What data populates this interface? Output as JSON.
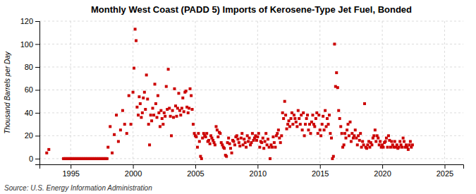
{
  "chart_data": {
    "type": "scatter",
    "title": "Monthly West Coast (PADD 5) Imports of Kerosene-Type Jet Fuel, Bonded",
    "y_label": "Thousand Barrels per Day",
    "annotation": "Source: U.S. Energy Information Administration",
    "color": "#cc0000",
    "marker": "square",
    "grid": true,
    "xlim": [
      1992.5,
      2026.5
    ],
    "xticks": [
      1995,
      2000,
      2005,
      2010,
      2015,
      2020,
      2025
    ],
    "ylim": [
      -5,
      120
    ],
    "yticks": [
      0,
      20,
      40,
      60,
      80,
      100,
      120
    ],
    "x": [
      1993.08,
      1993.25,
      1994.42,
      1994.5,
      1994.58,
      1994.67,
      1994.75,
      1994.83,
      1994.92,
      1995.0,
      1995.08,
      1995.17,
      1995.25,
      1995.33,
      1995.42,
      1995.5,
      1995.58,
      1995.67,
      1995.75,
      1995.83,
      1995.92,
      1996.0,
      1996.08,
      1996.17,
      1996.25,
      1996.33,
      1996.42,
      1996.5,
      1996.58,
      1996.67,
      1996.75,
      1996.83,
      1996.92,
      1997.0,
      1997.08,
      1997.17,
      1997.25,
      1997.33,
      1997.42,
      1997.5,
      1997.58,
      1997.67,
      1997.75,
      1997.83,
      1997.92,
      1998.0,
      1998.17,
      1998.33,
      1998.5,
      1998.67,
      1998.83,
      1999.0,
      1999.17,
      1999.33,
      1999.5,
      1999.67,
      1999.83,
      2000.0,
      2000.08,
      2000.17,
      2000.25,
      2000.33,
      2000.42,
      2000.5,
      2000.58,
      2000.67,
      2000.75,
      2000.83,
      2000.92,
      2001.0,
      2001.08,
      2001.17,
      2001.25,
      2001.33,
      2001.42,
      2001.5,
      2001.58,
      2001.67,
      2001.75,
      2001.83,
      2001.92,
      2002.0,
      2002.08,
      2002.17,
      2002.25,
      2002.33,
      2002.42,
      2002.5,
      2002.58,
      2002.67,
      2002.75,
      2002.83,
      2002.92,
      2003.0,
      2003.08,
      2003.17,
      2003.25,
      2003.33,
      2003.42,
      2003.5,
      2003.58,
      2003.67,
      2003.75,
      2003.83,
      2003.92,
      2004.0,
      2004.08,
      2004.17,
      2004.25,
      2004.33,
      2004.42,
      2004.5,
      2004.58,
      2004.67,
      2004.75,
      2004.83,
      2004.92,
      2005.0,
      2005.08,
      2005.17,
      2005.25,
      2005.33,
      2005.42,
      2005.5,
      2005.58,
      2005.67,
      2005.75,
      2005.83,
      2005.92,
      2006.0,
      2006.08,
      2006.17,
      2006.25,
      2006.33,
      2006.42,
      2006.5,
      2006.58,
      2006.67,
      2006.75,
      2006.83,
      2006.92,
      2007.0,
      2007.08,
      2007.17,
      2007.25,
      2007.33,
      2007.42,
      2007.5,
      2007.58,
      2007.67,
      2007.75,
      2007.83,
      2007.92,
      2008.0,
      2008.08,
      2008.17,
      2008.25,
      2008.33,
      2008.42,
      2008.5,
      2008.58,
      2008.67,
      2008.75,
      2008.83,
      2008.92,
      2009.0,
      2009.08,
      2009.17,
      2009.25,
      2009.33,
      2009.42,
      2009.5,
      2009.58,
      2009.67,
      2009.75,
      2009.83,
      2009.92,
      2010.0,
      2010.08,
      2010.17,
      2010.25,
      2010.33,
      2010.42,
      2010.5,
      2010.58,
      2010.67,
      2010.75,
      2010.83,
      2010.92,
      2011.0,
      2011.08,
      2011.17,
      2011.25,
      2011.33,
      2011.42,
      2011.5,
      2011.58,
      2011.67,
      2011.75,
      2011.83,
      2011.92,
      2012.0,
      2012.08,
      2012.17,
      2012.25,
      2012.33,
      2012.42,
      2012.5,
      2012.58,
      2012.67,
      2012.75,
      2012.83,
      2012.92,
      2013.0,
      2013.08,
      2013.17,
      2013.25,
      2013.33,
      2013.42,
      2013.5,
      2013.58,
      2013.67,
      2013.75,
      2013.83,
      2013.92,
      2014.0,
      2014.08,
      2014.17,
      2014.25,
      2014.33,
      2014.42,
      2014.5,
      2014.58,
      2014.67,
      2014.75,
      2014.83,
      2014.92,
      2015.0,
      2015.08,
      2015.17,
      2015.25,
      2015.33,
      2015.42,
      2015.5,
      2015.58,
      2015.67,
      2015.75,
      2015.83,
      2015.92,
      2016.0,
      2016.08,
      2016.17,
      2016.25,
      2016.33,
      2016.42,
      2016.5,
      2016.58,
      2016.67,
      2016.75,
      2016.83,
      2016.92,
      2017.0,
      2017.08,
      2017.17,
      2017.25,
      2017.33,
      2017.42,
      2017.5,
      2017.58,
      2017.67,
      2017.75,
      2017.83,
      2017.92,
      2018.0,
      2018.08,
      2018.17,
      2018.25,
      2018.33,
      2018.42,
      2018.5,
      2018.58,
      2018.67,
      2018.75,
      2018.83,
      2018.92,
      2019.0,
      2019.08,
      2019.17,
      2019.25,
      2019.33,
      2019.42,
      2019.5,
      2019.58,
      2019.67,
      2019.75,
      2019.83,
      2019.92,
      2020.0,
      2020.08,
      2020.17,
      2020.25,
      2020.33,
      2020.42,
      2020.5,
      2020.58,
      2020.67,
      2020.75,
      2020.83,
      2020.92,
      2021.0,
      2021.08,
      2021.17,
      2021.25,
      2021.33,
      2021.42,
      2021.5,
      2021.58,
      2021.67,
      2021.75,
      2021.83,
      2021.92,
      2022.0,
      2022.08,
      2022.17,
      2022.25,
      2022.33,
      2022.42
    ],
    "values": [
      5,
      8,
      0,
      0,
      0,
      0,
      0,
      0,
      0,
      0,
      0,
      0,
      0,
      0,
      0,
      0,
      0,
      0,
      0,
      0,
      0,
      0,
      0,
      0,
      0,
      0,
      0,
      0,
      0,
      0,
      0,
      0,
      0,
      0,
      0,
      0,
      0,
      0,
      0,
      0,
      0,
      0,
      0,
      0,
      0,
      10,
      28,
      5,
      21,
      38,
      15,
      25,
      42,
      30,
      22,
      55,
      30,
      58,
      79,
      113,
      103,
      45,
      38,
      54,
      48,
      36,
      40,
      53,
      58,
      43,
      73,
      52,
      30,
      12,
      38,
      33,
      44,
      38,
      65,
      48,
      36,
      55,
      40,
      28,
      42,
      35,
      30,
      40,
      37,
      63,
      43,
      78,
      44,
      37,
      20,
      42,
      36,
      61,
      46,
      37,
      44,
      57,
      42,
      38,
      44,
      53,
      41,
      58,
      59,
      45,
      40,
      44,
      61,
      55,
      43,
      30,
      22,
      20,
      19,
      10,
      22,
      15,
      2,
      0,
      18,
      22,
      20,
      19,
      22,
      15,
      16,
      13,
      20,
      18,
      16,
      14,
      12,
      28,
      25,
      19,
      23,
      22,
      14,
      12,
      10,
      9,
      3,
      2,
      14,
      18,
      13,
      9,
      5,
      16,
      15,
      12,
      19,
      20,
      17,
      14,
      11,
      18,
      22,
      12,
      17,
      14,
      10,
      20,
      15,
      18,
      12,
      14,
      22,
      16,
      18,
      20,
      16,
      19,
      22,
      10,
      15,
      14,
      18,
      9,
      15,
      22,
      12,
      17,
      10,
      0,
      12,
      10,
      19,
      14,
      10,
      20,
      22,
      25,
      18,
      14,
      20,
      40,
      35,
      50,
      38,
      26,
      30,
      33,
      28,
      35,
      40,
      30,
      38,
      35,
      32,
      28,
      42,
      35,
      30,
      38,
      25,
      40,
      20,
      30,
      35,
      38,
      25,
      30,
      22,
      32,
      38,
      30,
      28,
      35,
      40,
      22,
      38,
      25,
      20,
      30,
      37,
      25,
      42,
      28,
      35,
      30,
      38,
      22,
      18,
      0,
      2,
      100,
      63,
      75,
      62,
      42,
      35,
      28,
      22,
      10,
      12,
      22,
      18,
      25,
      30,
      20,
      32,
      15,
      22,
      18,
      20,
      25,
      18,
      12,
      20,
      16,
      22,
      10,
      15,
      12,
      48,
      10,
      9,
      12,
      15,
      10,
      14,
      12,
      18,
      20,
      25,
      15,
      20,
      18,
      12,
      15,
      10,
      12,
      10,
      14,
      15,
      18,
      10,
      20,
      16,
      10,
      15,
      12,
      10,
      15,
      10,
      12,
      9,
      10,
      15,
      12,
      10,
      18,
      15,
      10,
      12,
      10,
      8,
      12,
      15,
      10,
      12
    ]
  }
}
